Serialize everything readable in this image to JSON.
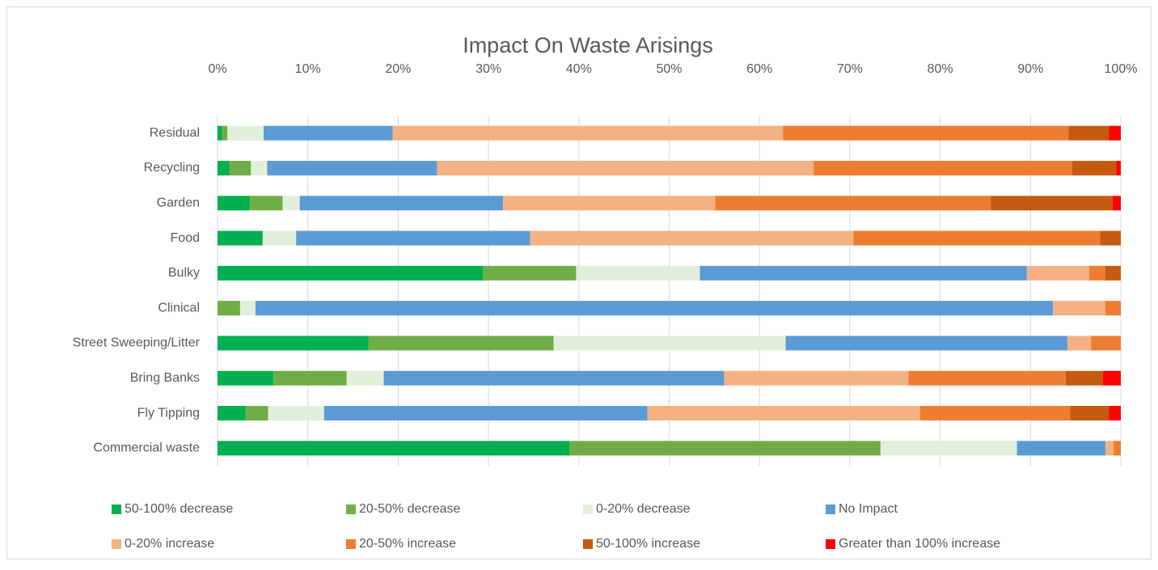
{
  "chart_data": {
    "type": "stacked_bar_horizontal",
    "title": "Impact On Waste Arisings",
    "categories": [
      "Residual",
      "Recycling",
      "Garden",
      "Food",
      "Bulky",
      "Clinical",
      "Street Sweeping/Litter",
      "Bring Banks",
      "Fly Tipping",
      "Commercial waste"
    ],
    "xlim": [
      0,
      100
    ],
    "xticks": [
      {
        "value": 0,
        "label": "0%"
      },
      {
        "value": 10,
        "label": "10%"
      },
      {
        "value": 20,
        "label": "20%"
      },
      {
        "value": 30,
        "label": "30%"
      },
      {
        "value": 40,
        "label": "40%"
      },
      {
        "value": 50,
        "label": "50%"
      },
      {
        "value": 60,
        "label": "60%"
      },
      {
        "value": 70,
        "label": "70%"
      },
      {
        "value": 80,
        "label": "80%"
      },
      {
        "value": 90,
        "label": "90%"
      },
      {
        "value": 100,
        "label": "100%"
      }
    ],
    "grid": true,
    "legend": "bottom",
    "series": [
      {
        "name": "50-100% decrease",
        "color": "#00b050",
        "values": [
          0.5,
          1.3,
          3.6,
          5.0,
          29.4,
          0,
          16.7,
          6.2,
          3.1,
          39.0
        ]
      },
      {
        "name": "20-50% decrease",
        "color": "#70ad47",
        "values": [
          0.6,
          2.4,
          3.6,
          0,
          10.3,
          2.5,
          20.5,
          8.1,
          2.5,
          34.4
        ]
      },
      {
        "name": "0-20% decrease",
        "color": "#e2efda",
        "values": [
          4.0,
          1.8,
          1.9,
          3.7,
          13.7,
          1.7,
          25.7,
          4.1,
          6.2,
          15.1
        ]
      },
      {
        "name": "No Impact",
        "color": "#5b9bd5",
        "values": [
          14.3,
          18.8,
          22.5,
          25.9,
          36.2,
          88.3,
          31.2,
          37.7,
          35.8,
          9.8
        ]
      },
      {
        "name": "0-20% increase",
        "color": "#f4b183",
        "values": [
          43.2,
          41.7,
          23.5,
          35.8,
          6.9,
          5.8,
          2.6,
          20.4,
          30.2,
          0.9
        ]
      },
      {
        "name": "20-50% increase",
        "color": "#ed7d31",
        "values": [
          31.6,
          28.6,
          30.5,
          27.3,
          1.8,
          1.7,
          3.3,
          17.4,
          16.6,
          0.8
        ]
      },
      {
        "name": "50-100% increase",
        "color": "#c55a11",
        "values": [
          4.5,
          4.9,
          13.5,
          2.3,
          1.7,
          0,
          0,
          4.1,
          4.3,
          0
        ]
      },
      {
        "name": "Greater than 100% increase",
        "color": "#ff0000",
        "values": [
          1.3,
          0.5,
          0.9,
          0,
          0,
          0,
          0,
          2.0,
          1.3,
          0
        ]
      }
    ]
  }
}
